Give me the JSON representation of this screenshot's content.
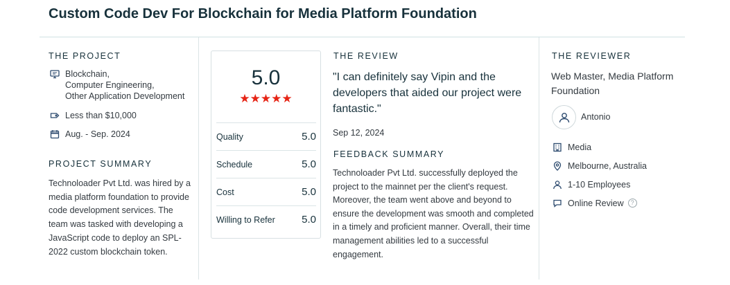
{
  "header": {
    "title": "Custom Code Dev For Blockchain for Media Platform Foundation"
  },
  "project": {
    "label": "THE PROJECT",
    "services": [
      "Blockchain,",
      "Computer Engineering,",
      "Other Application Development"
    ],
    "budget": "Less than $10,000",
    "dates": "Aug. - Sep. 2024",
    "icons": [
      "monitor-icon",
      "tag-icon",
      "calendar-icon"
    ]
  },
  "project_summary": {
    "label": "PROJECT SUMMARY",
    "text": "Technoloader Pvt Ltd. was hired by a media platform foundation to provide code development services. The team was tasked with developing a JavaScript code to deploy an SPL-2022 custom blockchain token."
  },
  "rating": {
    "overall": "5.0",
    "stars": "★★★★★",
    "star_count": 5,
    "star_color": "#e62415",
    "rows": [
      {
        "label": "Quality",
        "value": "5.0"
      },
      {
        "label": "Schedule",
        "value": "5.0"
      },
      {
        "label": "Cost",
        "value": "5.0"
      },
      {
        "label": "Willing to Refer",
        "value": "5.0"
      }
    ]
  },
  "review": {
    "label": "THE REVIEW",
    "quote": "\"I can definitely say Vipin and the developers that aided our project were fantastic.\"",
    "date": "Sep 12, 2024"
  },
  "feedback": {
    "label": "FEEDBACK SUMMARY",
    "text": "Technoloader Pvt Ltd. successfully deployed the project to the mainnet per the client's request. Moreover, the team went above and beyond to ensure the development was smooth and completed in a timely and proficient manner. Overall, their time management abilities led to a successful engagement."
  },
  "reviewer": {
    "label": "THE REVIEWER",
    "title": "Web Master, Media Platform Foundation",
    "name": "Antonio",
    "industry": "Media",
    "location": "Melbourne, Australia",
    "size": "1-10 Employees",
    "review_type": "Online Review",
    "help_glyph": "?",
    "icons": [
      "user-icon",
      "building-icon",
      "location-pin-icon",
      "person-icon",
      "chat-bubble-icon",
      "help-icon"
    ]
  },
  "colors": {
    "heading": "#17313b",
    "text": "#333a40",
    "divider": "#dbe4e6",
    "star": "#e62415"
  }
}
